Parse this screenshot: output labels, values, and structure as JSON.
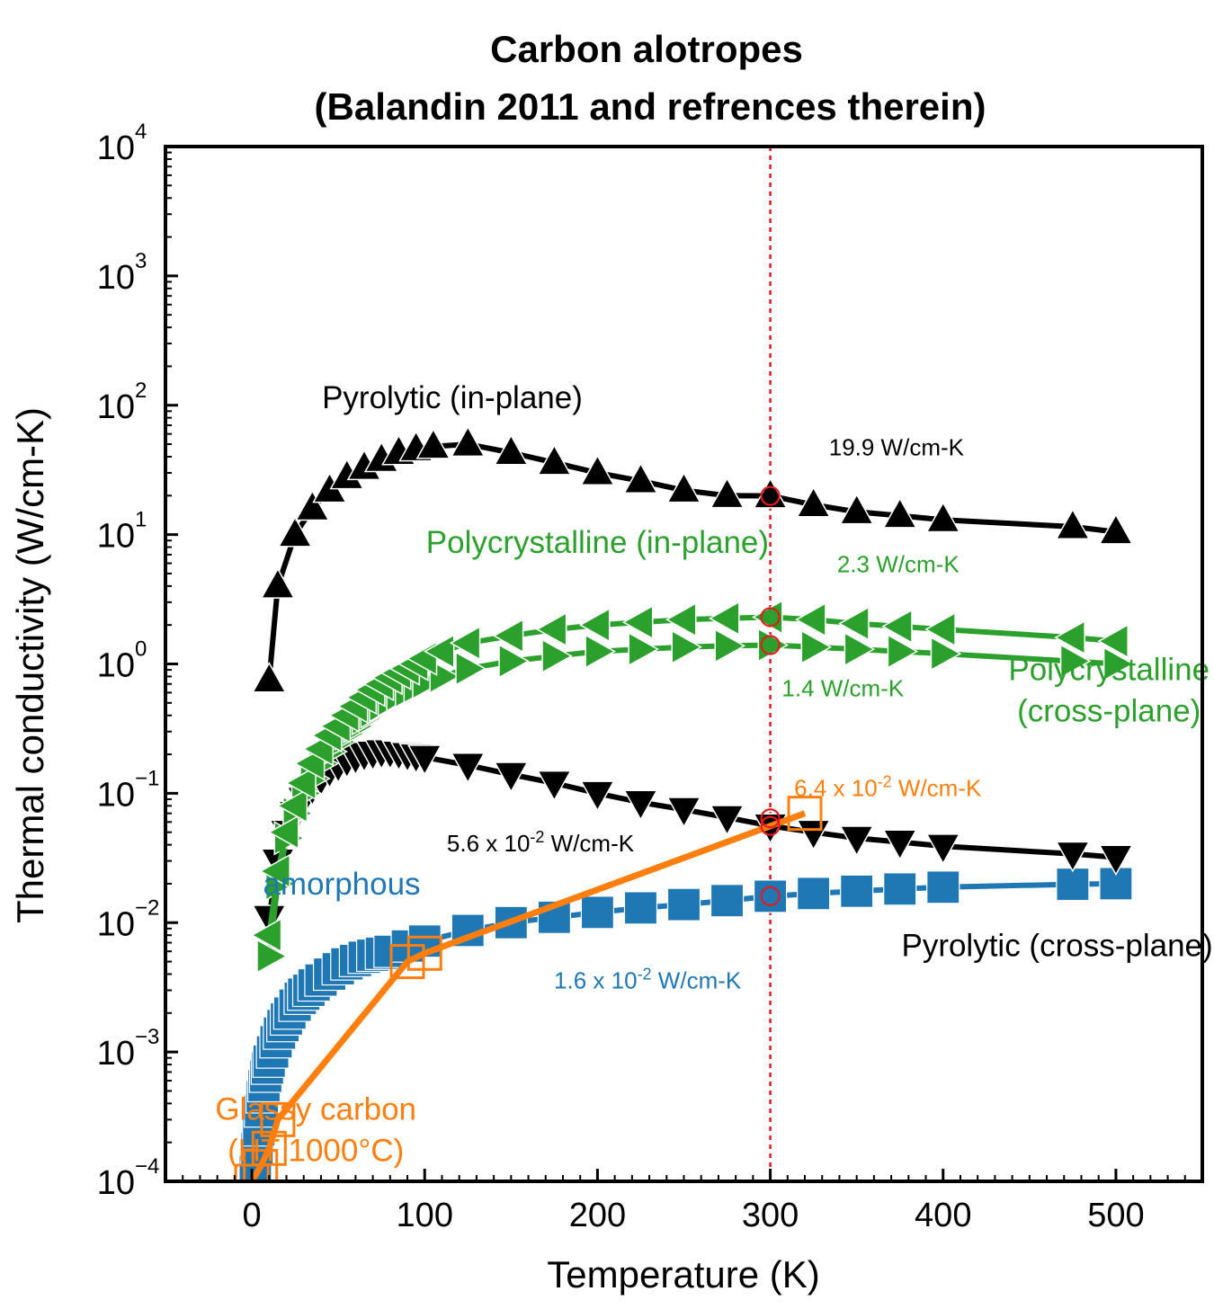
{
  "chart_data": {
    "type": "scatter",
    "title": [
      "Carbon alotropes",
      "(Balandin 2011 and refrences therein)"
    ],
    "xlabel": "Temperature (K)",
    "ylabel": "Thermal conductivity (W/cm-K)",
    "xlim": [
      -50,
      550
    ],
    "ylim": [
      0.0001,
      10000
    ],
    "yscale": "log",
    "grid": false,
    "x_ticks": [
      0,
      100,
      200,
      300,
      400,
      500
    ],
    "x_tick_labels": [
      "0",
      "100",
      "200",
      "300",
      "400",
      "500"
    ],
    "y_ticks": [
      0.0001,
      0.001,
      0.01,
      0.1,
      1,
      10,
      100,
      1000,
      10000
    ],
    "y_tick_labels": [
      {
        "base": "10",
        "exp": "−4"
      },
      {
        "base": "10",
        "exp": "−3"
      },
      {
        "base": "10",
        "exp": "−2"
      },
      {
        "base": "10",
        "exp": "−1"
      },
      {
        "base": "10",
        "exp": "0"
      },
      {
        "base": "10",
        "exp": "1"
      },
      {
        "base": "10",
        "exp": "2"
      },
      {
        "base": "10",
        "exp": "3"
      },
      {
        "base": "10",
        "exp": "4"
      }
    ],
    "reference_line": {
      "x": 300,
      "color": "#e41a1c",
      "style": "dotted"
    },
    "series": [
      {
        "key": "pyrolytic-in-plane",
        "color": "#000000",
        "marker": "triangle-up",
        "x": [
          10,
          15,
          25,
          35,
          45,
          55,
          65,
          75,
          85,
          95,
          105,
          125,
          150,
          175,
          200,
          225,
          250,
          275,
          300,
          325,
          350,
          375,
          400,
          475,
          500
        ],
        "y": [
          0.75,
          4,
          10,
          16,
          22,
          28,
          33,
          38,
          43,
          46,
          48,
          50,
          43,
          36,
          30,
          26,
          22,
          20,
          19.9,
          17,
          15,
          14,
          13,
          11.5,
          10.5
        ]
      },
      {
        "key": "polycrystalline-in-plane",
        "color": "#2ca02c",
        "marker": "triangle-left",
        "x": [
          10,
          15,
          20,
          25,
          30,
          35,
          40,
          45,
          50,
          55,
          60,
          65,
          70,
          75,
          80,
          85,
          90,
          95,
          100,
          110,
          125,
          150,
          175,
          200,
          225,
          250,
          275,
          300,
          325,
          350,
          375,
          400,
          475,
          500
        ],
        "y": [
          0.008,
          0.025,
          0.05,
          0.08,
          0.12,
          0.17,
          0.22,
          0.28,
          0.33,
          0.4,
          0.47,
          0.55,
          0.63,
          0.7,
          0.78,
          0.85,
          0.92,
          1.0,
          1.1,
          1.25,
          1.45,
          1.65,
          1.85,
          2.0,
          2.1,
          2.2,
          2.25,
          2.3,
          2.2,
          2.05,
          1.95,
          1.85,
          1.6,
          1.5
        ]
      },
      {
        "key": "polycrystalline-cross-plane",
        "color": "#2ca02c",
        "marker": "triangle-right",
        "x": [
          10,
          15,
          20,
          25,
          30,
          35,
          40,
          45,
          50,
          55,
          60,
          65,
          70,
          75,
          80,
          85,
          90,
          95,
          100,
          110,
          125,
          150,
          175,
          200,
          225,
          250,
          275,
          300,
          325,
          350,
          375,
          400,
          475,
          500
        ],
        "y": [
          0.0055,
          0.02,
          0.045,
          0.07,
          0.1,
          0.13,
          0.17,
          0.21,
          0.25,
          0.29,
          0.33,
          0.38,
          0.43,
          0.48,
          0.53,
          0.58,
          0.62,
          0.67,
          0.72,
          0.8,
          0.92,
          1.05,
          1.15,
          1.25,
          1.3,
          1.35,
          1.38,
          1.4,
          1.35,
          1.3,
          1.25,
          1.2,
          1.05,
          1.0
        ]
      },
      {
        "key": "pyrolytic-cross-plane",
        "color": "#000000",
        "marker": "triangle-down",
        "x": [
          10,
          15,
          20,
          25,
          30,
          35,
          40,
          45,
          50,
          55,
          60,
          65,
          70,
          75,
          80,
          85,
          90,
          95,
          100,
          125,
          150,
          175,
          200,
          225,
          250,
          275,
          300,
          325,
          350,
          375,
          400,
          475,
          500
        ],
        "y": [
          0.011,
          0.03,
          0.05,
          0.07,
          0.09,
          0.11,
          0.13,
          0.15,
          0.165,
          0.18,
          0.19,
          0.2,
          0.205,
          0.21,
          0.21,
          0.205,
          0.2,
          0.195,
          0.19,
          0.165,
          0.14,
          0.12,
          0.1,
          0.085,
          0.075,
          0.065,
          0.056,
          0.05,
          0.045,
          0.042,
          0.039,
          0.034,
          0.032
        ]
      },
      {
        "key": "amorphous",
        "color": "#1f77b4",
        "marker": "square",
        "x": [
          2,
          3,
          4,
          5,
          6,
          7,
          8,
          9,
          10,
          12,
          14,
          16,
          18,
          20,
          22,
          25,
          28,
          30,
          33,
          36,
          40,
          45,
          50,
          55,
          60,
          65,
          70,
          75,
          80,
          90,
          100,
          125,
          150,
          175,
          200,
          225,
          250,
          275,
          300,
          325,
          350,
          375,
          400,
          475,
          500
        ],
        "y": [
          0.00012,
          0.00018,
          0.00025,
          0.00035,
          0.00045,
          0.00055,
          0.00065,
          0.00075,
          0.00085,
          0.001,
          0.0012,
          0.0014,
          0.0016,
          0.0018,
          0.002,
          0.0023,
          0.0026,
          0.0028,
          0.003,
          0.0033,
          0.0036,
          0.004,
          0.0044,
          0.0048,
          0.0051,
          0.0054,
          0.0056,
          0.0058,
          0.006,
          0.0066,
          0.0072,
          0.0087,
          0.01,
          0.011,
          0.012,
          0.013,
          0.0138,
          0.0148,
          0.016,
          0.0168,
          0.0175,
          0.0182,
          0.0188,
          0.0198,
          0.02
        ]
      },
      {
        "key": "glassy-carbon",
        "color": "#ff7f0e",
        "marker": "square-open",
        "x": [
          0,
          5,
          10,
          15,
          90,
          100,
          320
        ],
        "y": [
          0.0001,
          0.00013,
          0.00018,
          0.0003,
          0.005,
          0.0058,
          0.07
        ]
      }
    ],
    "series_labels": [
      {
        "series": "pyrolytic-in-plane",
        "lines": [
          "Pyrolytic (in-plane)"
        ],
        "color": "#000000",
        "at": [
          116,
          95
        ]
      },
      {
        "series": "polycrystalline-in-plane",
        "lines": [
          "Polycrystalline (in-plane)"
        ],
        "color": "#2ca02c",
        "at": [
          200,
          7.2
        ]
      },
      {
        "series": "polycrystalline-cross-plane",
        "lines": [
          "Polycrystalline",
          "(cross-plane)"
        ],
        "color": "#2ca02c",
        "at": [
          496,
          0.75
        ]
      },
      {
        "series": "pyrolytic-cross-plane",
        "lines": [
          "Pyrolytic (cross-plane)"
        ],
        "color": "#000000",
        "at": [
          466,
          0.0055
        ]
      },
      {
        "series": "amorphous",
        "lines": [
          "amorphous"
        ],
        "color": "#1f77b4",
        "at": [
          52,
          0.0165
        ]
      },
      {
        "series": "glassy-carbon",
        "lines": [
          "Glassy carbon",
          "(HT 1000°C)"
        ],
        "color": "#ff7f0e",
        "at": [
          37,
          0.0003
        ]
      }
    ],
    "annotations": [
      {
        "key": "ann-pyro-in",
        "x": 300,
        "y": 19.9,
        "text_main": "19.9 W/cm-K",
        "text_base": "",
        "text_exp": "",
        "text_unit": "",
        "color": "#000000",
        "label_at": [
          373,
          41
        ]
      },
      {
        "key": "ann-poly-in",
        "x": 300,
        "y": 2.3,
        "text_main": "2.3 W/cm-K",
        "text_base": "",
        "text_exp": "",
        "text_unit": "",
        "color": "#2ca02c",
        "label_at": [
          374,
          5.1
        ]
      },
      {
        "key": "ann-poly-cross",
        "x": 300,
        "y": 1.4,
        "text_main": "1.4 W/cm-K",
        "text_base": "",
        "text_exp": "",
        "text_unit": "",
        "color": "#2ca02c",
        "label_at": [
          342,
          0.56
        ]
      },
      {
        "key": "ann-glassy",
        "x": 300,
        "y": 0.064,
        "text_main": "",
        "text_base": "6.4 x 10",
        "text_exp": "-2",
        "text_unit": " W/cm-K",
        "color": "#ff7f0e",
        "label_at": [
          368,
          0.095
        ]
      },
      {
        "key": "ann-pyro-cross",
        "x": 300,
        "y": 0.056,
        "text_main": "",
        "text_base": "5.6 x 10",
        "text_exp": "-2",
        "text_unit": " W/cm-K",
        "color": "#000000",
        "label_at": [
          167,
          0.0355
        ]
      },
      {
        "key": "ann-amorphous",
        "x": 300,
        "y": 0.016,
        "text_main": "",
        "text_base": "1.6 x 10",
        "text_exp": "-2",
        "text_unit": " W/cm-K",
        "color": "#1f77b4",
        "label_at": [
          229,
          0.0031
        ]
      }
    ]
  }
}
